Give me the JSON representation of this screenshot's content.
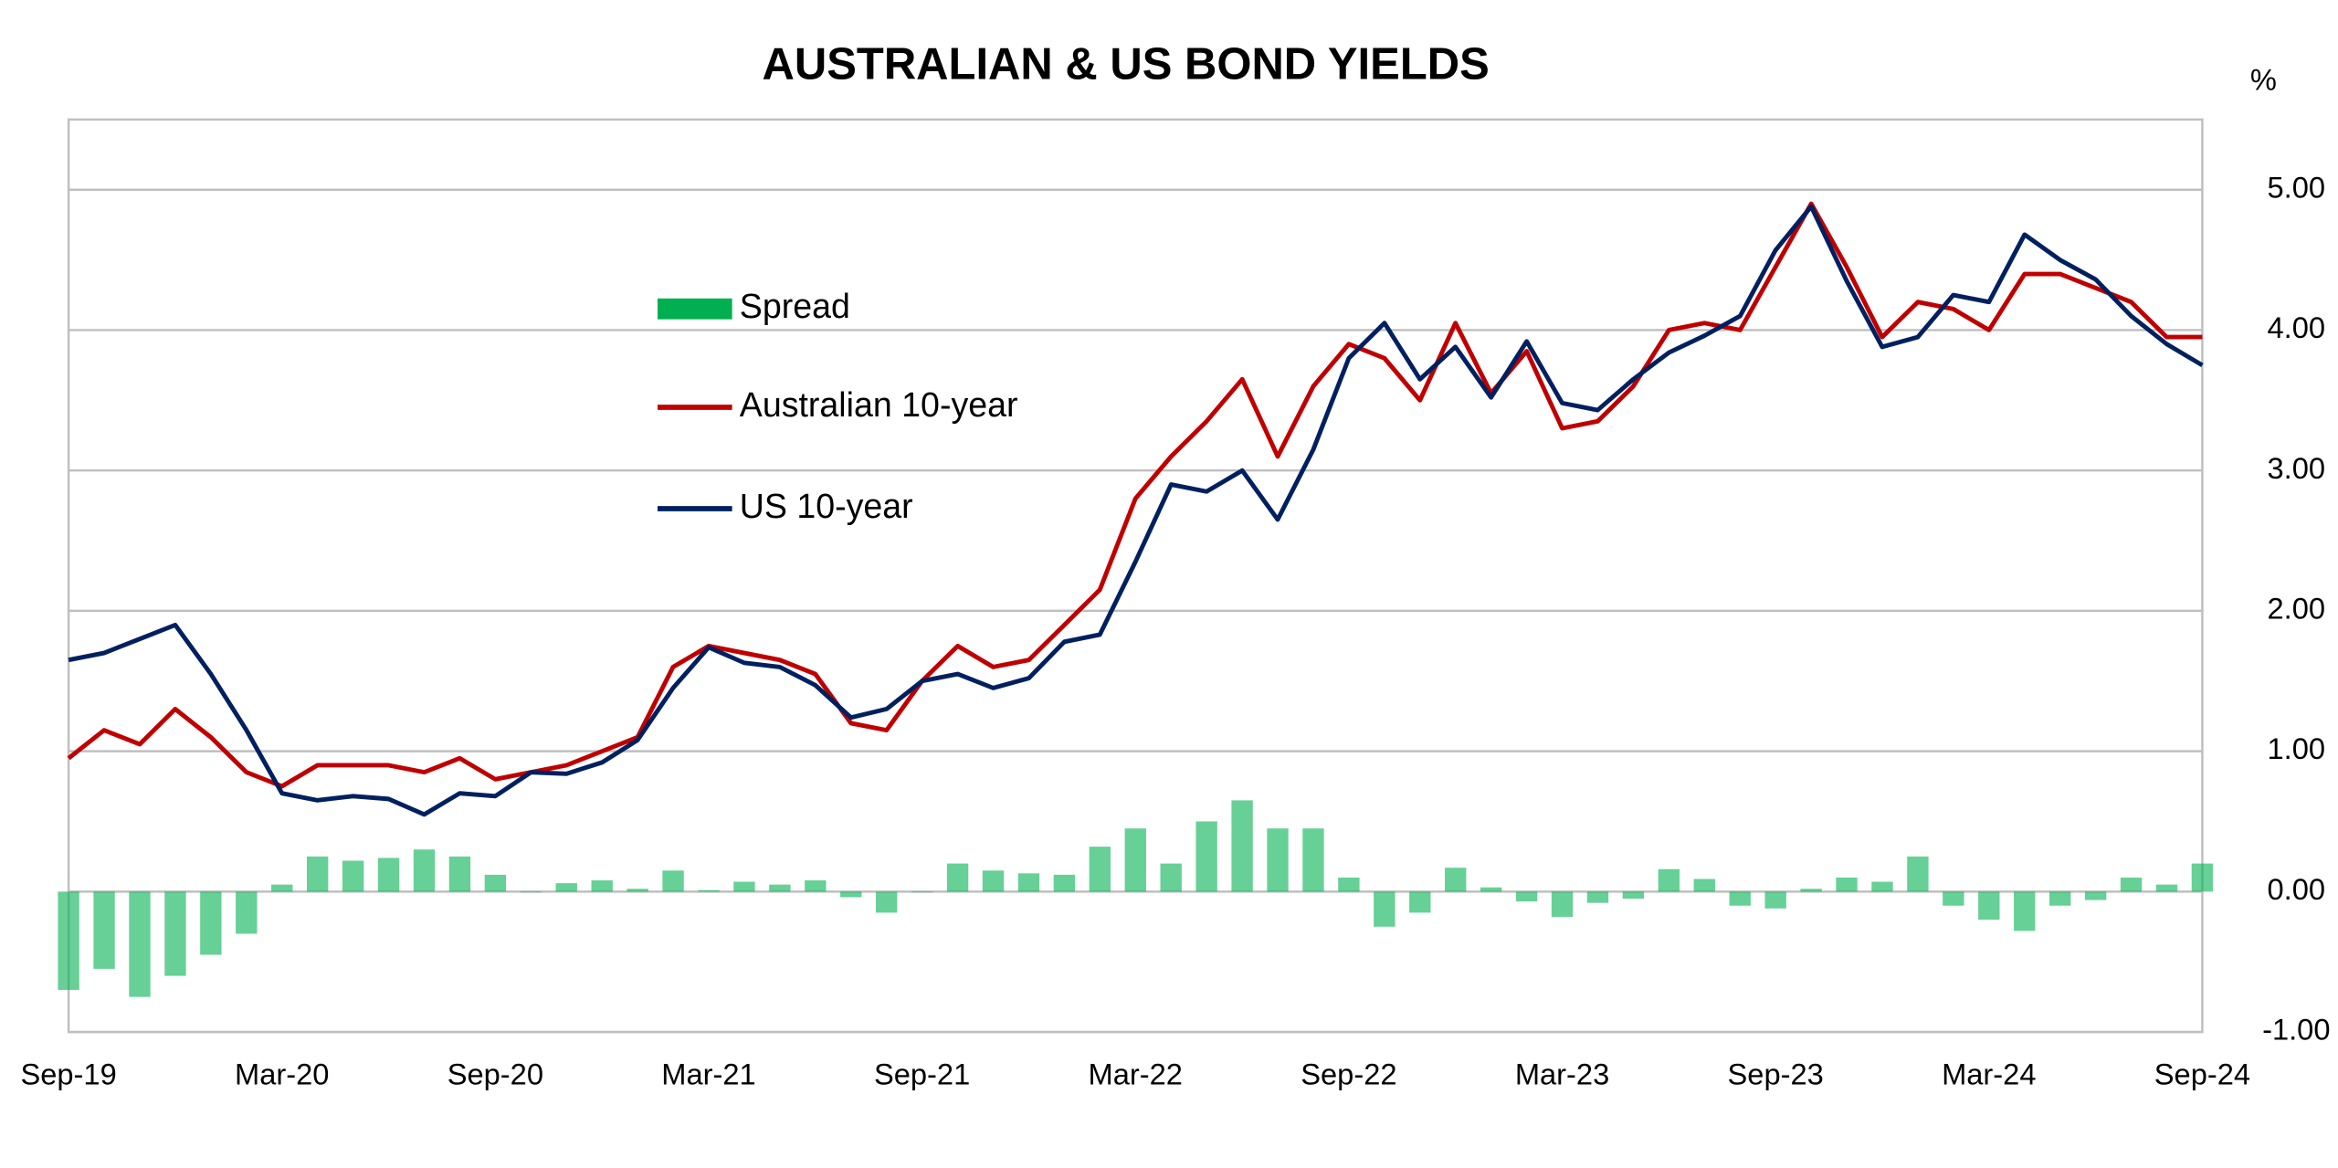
{
  "chart_data": {
    "type": "line",
    "title": "AUSTRALIAN & US BOND YIELDS",
    "y_unit": "%",
    "categories": [
      "Sep-19",
      null,
      null,
      null,
      null,
      null,
      "Mar-20",
      null,
      null,
      null,
      null,
      null,
      "Sep-20",
      null,
      null,
      null,
      null,
      null,
      "Mar-21",
      null,
      null,
      null,
      null,
      null,
      "Sep-21",
      null,
      null,
      null,
      null,
      null,
      "Mar-22",
      null,
      null,
      null,
      null,
      null,
      "Sep-22",
      null,
      null,
      null,
      null,
      null,
      "Mar-23",
      null,
      null,
      null,
      null,
      null,
      "Sep-23",
      null,
      null,
      null,
      null,
      null,
      "Mar-24",
      null,
      null,
      null,
      null,
      null,
      "Sep-24"
    ],
    "series": [
      {
        "name": "Spread",
        "type": "bar",
        "color": "#00b050",
        "values": [
          -0.7,
          -0.55,
          -0.75,
          -0.6,
          -0.45,
          -0.3,
          0.05,
          0.25,
          0.22,
          0.24,
          0.3,
          0.25,
          0.12,
          0.0,
          0.06,
          0.08,
          0.02,
          0.15,
          0.01,
          0.07,
          0.05,
          0.08,
          -0.04,
          -0.15,
          0.0,
          0.2,
          0.15,
          0.13,
          0.12,
          0.32,
          0.45,
          0.2,
          0.5,
          0.65,
          0.45,
          0.45,
          0.1,
          -0.25,
          -0.15,
          0.17,
          0.03,
          -0.07,
          -0.18,
          -0.08,
          -0.05,
          0.16,
          0.09,
          -0.1,
          -0.12,
          0.02,
          0.1,
          0.07,
          0.25,
          -0.1,
          -0.2,
          -0.28,
          -0.1,
          -0.06,
          0.1,
          0.05,
          0.2
        ]
      },
      {
        "name": "Australian 10-year",
        "type": "line",
        "color": "#c00000",
        "values": [
          0.95,
          1.15,
          1.05,
          1.3,
          1.1,
          0.85,
          0.75,
          0.9,
          0.9,
          0.9,
          0.85,
          0.95,
          0.8,
          0.85,
          0.9,
          1.0,
          1.1,
          1.6,
          1.75,
          1.7,
          1.65,
          1.55,
          1.2,
          1.15,
          1.5,
          1.75,
          1.6,
          1.65,
          1.9,
          2.15,
          2.8,
          3.1,
          3.35,
          3.65,
          3.1,
          3.6,
          3.9,
          3.8,
          3.5,
          4.05,
          3.55,
          3.85,
          3.3,
          3.35,
          3.6,
          4.0,
          4.05,
          4.0,
          4.45,
          4.9,
          4.45,
          3.95,
          4.2,
          4.15,
          4.0,
          4.4,
          4.4,
          4.3,
          4.2,
          3.95,
          3.95
        ]
      },
      {
        "name": "US 10-year",
        "type": "line",
        "color": "#002060",
        "values": [
          1.65,
          1.7,
          1.8,
          1.9,
          1.55,
          1.15,
          0.7,
          0.65,
          0.68,
          0.66,
          0.55,
          0.7,
          0.68,
          0.85,
          0.84,
          0.92,
          1.08,
          1.45,
          1.74,
          1.63,
          1.6,
          1.47,
          1.24,
          1.3,
          1.5,
          1.55,
          1.45,
          1.52,
          1.78,
          1.83,
          2.35,
          2.9,
          2.85,
          3.0,
          2.65,
          3.15,
          3.8,
          4.05,
          3.65,
          3.88,
          3.52,
          3.92,
          3.48,
          3.43,
          3.65,
          3.84,
          3.96,
          4.1,
          4.57,
          4.88,
          4.35,
          3.88,
          3.95,
          4.25,
          4.2,
          4.68,
          4.5,
          4.36,
          4.1,
          3.9,
          3.75
        ]
      }
    ],
    "ylim": [
      -1,
      5.5
    ],
    "yticks": [
      {
        "value": -1,
        "label": "-1.00"
      },
      {
        "value": 0,
        "label": "0.00"
      },
      {
        "value": 1,
        "label": "1.00"
      },
      {
        "value": 2,
        "label": "2.00"
      },
      {
        "value": 3,
        "label": "3.00"
      },
      {
        "value": 4,
        "label": "4.00"
      },
      {
        "value": 5,
        "label": "5.00"
      }
    ],
    "grid": true
  }
}
